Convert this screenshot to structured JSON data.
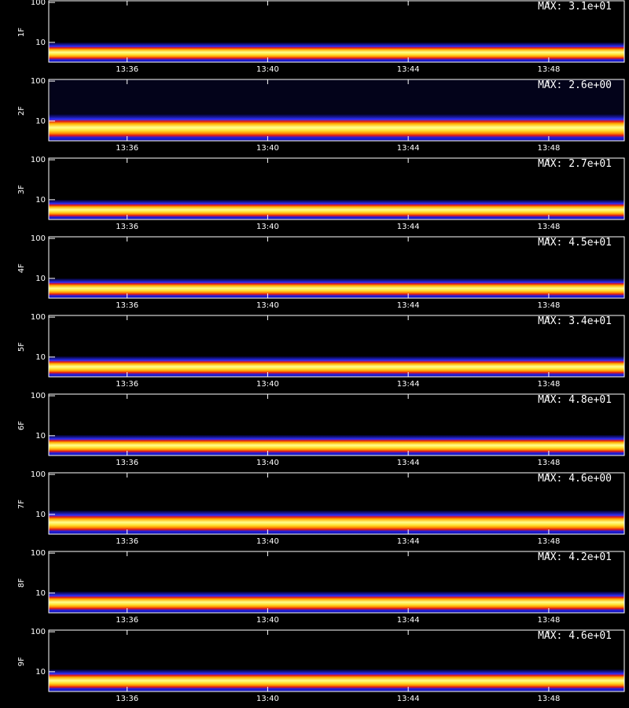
{
  "chart_data": [
    {
      "type": "heatmap",
      "ylabel": "1F",
      "annotation": "MAX: 3.1e+01",
      "ylog": true,
      "ylim": [
        3.2,
        110
      ],
      "yticks": [
        10,
        100
      ],
      "xlim": [
        813.77,
        830.15
      ],
      "xticks": [
        {
          "value": 816,
          "label": "13:36"
        },
        {
          "value": 820,
          "label": "13:40"
        },
        {
          "value": 824,
          "label": "13:44"
        },
        {
          "value": 828,
          "label": "13:48"
        }
      ]
    },
    {
      "type": "heatmap",
      "ylabel": "2F",
      "annotation": "MAX: 2.6e+00",
      "ylog": true,
      "ylim": [
        3.2,
        110
      ],
      "yticks": [
        10,
        100
      ],
      "xlim": [
        813.77,
        830.15
      ],
      "xticks": [
        {
          "value": 816,
          "label": "13:36"
        },
        {
          "value": 820,
          "label": "13:40"
        },
        {
          "value": 824,
          "label": "13:44"
        },
        {
          "value": 828,
          "label": "13:48"
        }
      ]
    },
    {
      "type": "heatmap",
      "ylabel": "3F",
      "annotation": "MAX: 2.7e+01",
      "ylog": true,
      "ylim": [
        3.2,
        110
      ],
      "yticks": [
        10,
        100
      ],
      "xlim": [
        813.77,
        830.15
      ],
      "xticks": [
        {
          "value": 816,
          "label": "13:36"
        },
        {
          "value": 820,
          "label": "13:40"
        },
        {
          "value": 824,
          "label": "13:44"
        },
        {
          "value": 828,
          "label": "13:48"
        }
      ]
    },
    {
      "type": "heatmap",
      "ylabel": "4F",
      "annotation": "MAX: 4.5e+01",
      "ylog": true,
      "ylim": [
        3.2,
        110
      ],
      "yticks": [
        10,
        100
      ],
      "xlim": [
        813.77,
        830.15
      ],
      "xticks": [
        {
          "value": 816,
          "label": "13:36"
        },
        {
          "value": 820,
          "label": "13:40"
        },
        {
          "value": 824,
          "label": "13:44"
        },
        {
          "value": 828,
          "label": "13:48"
        }
      ]
    },
    {
      "type": "heatmap",
      "ylabel": "5F",
      "annotation": "MAX: 3.4e+01",
      "ylog": true,
      "ylim": [
        3.2,
        110
      ],
      "yticks": [
        10,
        100
      ],
      "xlim": [
        813.77,
        830.15
      ],
      "xticks": [
        {
          "value": 816,
          "label": "13:36"
        },
        {
          "value": 820,
          "label": "13:40"
        },
        {
          "value": 824,
          "label": "13:44"
        },
        {
          "value": 828,
          "label": "13:48"
        }
      ]
    },
    {
      "type": "heatmap",
      "ylabel": "6F",
      "annotation": "MAX: 4.8e+01",
      "ylog": true,
      "ylim": [
        3.2,
        110
      ],
      "yticks": [
        10,
        100
      ],
      "xlim": [
        813.77,
        830.15
      ],
      "xticks": [
        {
          "value": 816,
          "label": "13:36"
        },
        {
          "value": 820,
          "label": "13:40"
        },
        {
          "value": 824,
          "label": "13:44"
        },
        {
          "value": 828,
          "label": "13:48"
        }
      ]
    },
    {
      "type": "heatmap",
      "ylabel": "7F",
      "annotation": "MAX: 4.6e+00",
      "ylog": true,
      "ylim": [
        3.2,
        110
      ],
      "yticks": [
        10,
        100
      ],
      "xlim": [
        813.77,
        830.15
      ],
      "xticks": [
        {
          "value": 816,
          "label": "13:36"
        },
        {
          "value": 820,
          "label": "13:40"
        },
        {
          "value": 824,
          "label": "13:44"
        },
        {
          "value": 828,
          "label": "13:48"
        }
      ]
    },
    {
      "type": "heatmap",
      "ylabel": "8F",
      "annotation": "MAX: 4.2e+01",
      "ylog": true,
      "ylim": [
        3.2,
        110
      ],
      "yticks": [
        10,
        100
      ],
      "xlim": [
        813.77,
        830.15
      ],
      "xticks": [
        {
          "value": 816,
          "label": "13:36"
        },
        {
          "value": 820,
          "label": "13:40"
        },
        {
          "value": 824,
          "label": "13:44"
        },
        {
          "value": 828,
          "label": "13:48"
        }
      ]
    },
    {
      "type": "heatmap",
      "ylabel": "9F",
      "annotation": "MAX: 4.6e+01",
      "ylog": true,
      "ylim": [
        3.2,
        110
      ],
      "yticks": [
        10,
        100
      ],
      "xlim": [
        813.77,
        830.15
      ],
      "xticks": [
        {
          "value": 816,
          "label": "13:36"
        },
        {
          "value": 820,
          "label": "13:40"
        },
        {
          "value": 824,
          "label": "13:44"
        },
        {
          "value": 828,
          "label": "13:48"
        }
      ]
    }
  ]
}
